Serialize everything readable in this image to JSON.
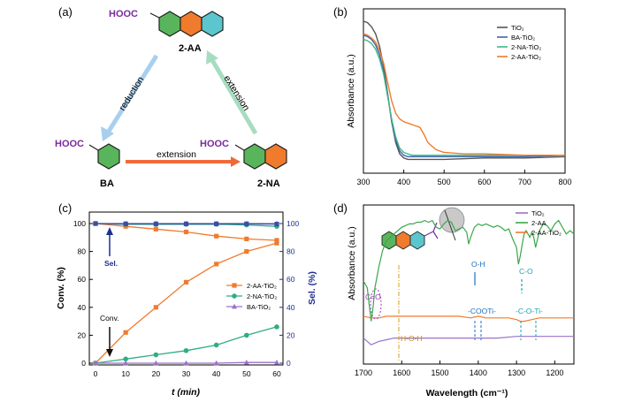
{
  "panel_a": {
    "label": "(a)",
    "cooh": "HOOC",
    "aa_name": "2-AA",
    "ba_name": "BA",
    "na_name": "2-NA",
    "arrow_reduction": "reduction",
    "arrow_extension_right": "extension",
    "arrow_extension_bottom": "extension",
    "colors": {
      "green": "#59b55c",
      "orange": "#f07b2c",
      "cyan": "#5cc6cf",
      "purple": "#7a2a9c",
      "blue_arrow": "#a9cfee",
      "green_arrow": "#a8dcc0",
      "orange_arrow": "#f06a38"
    }
  },
  "chart_data": [
    {
      "panel": "(b)",
      "type": "line",
      "xlabel": "Wavelength (nm)",
      "ylabel": "Absorbance (a.u.)",
      "xlim": [
        300,
        800
      ],
      "xticks": [
        "300",
        "400",
        "500",
        "600",
        "700",
        "800"
      ],
      "yticks_shown": false,
      "legend": [
        "TiO₂",
        "BA-TiO₂",
        "2-NA-TiO₂",
        "2-AA-TiO₂"
      ],
      "legend_position": "top-right",
      "series": [
        {
          "name": "TiO₂",
          "color": "#555555",
          "x": [
            300,
            310,
            320,
            330,
            340,
            350,
            360,
            370,
            380,
            390,
            400,
            410,
            420,
            440,
            460,
            500,
            600,
            700,
            800
          ],
          "y": [
            1.0,
            0.99,
            0.96,
            0.91,
            0.82,
            0.68,
            0.48,
            0.28,
            0.13,
            0.05,
            0.02,
            0.01,
            0.01,
            0.01,
            0.01,
            0.01,
            0.02,
            0.02,
            0.03
          ]
        },
        {
          "name": "BA-TiO₂",
          "color": "#3a64b0",
          "x": [
            300,
            310,
            320,
            330,
            340,
            350,
            360,
            370,
            380,
            390,
            400,
            410,
            420,
            440,
            460,
            500,
            600,
            700,
            800
          ],
          "y": [
            0.9,
            0.89,
            0.87,
            0.83,
            0.76,
            0.64,
            0.47,
            0.29,
            0.15,
            0.07,
            0.04,
            0.03,
            0.03,
            0.03,
            0.03,
            0.03,
            0.03,
            0.03,
            0.04
          ]
        },
        {
          "name": "2-NA-TiO₂",
          "color": "#3fb88a",
          "x": [
            300,
            310,
            320,
            330,
            340,
            350,
            360,
            370,
            380,
            390,
            400,
            410,
            420,
            440,
            460,
            500,
            600,
            700,
            800
          ],
          "y": [
            0.87,
            0.86,
            0.84,
            0.8,
            0.73,
            0.62,
            0.46,
            0.3,
            0.17,
            0.09,
            0.06,
            0.05,
            0.04,
            0.04,
            0.04,
            0.04,
            0.04,
            0.04,
            0.04
          ]
        },
        {
          "name": "2-AA-TiO₂",
          "color": "#f07b2c",
          "x": [
            300,
            310,
            320,
            330,
            340,
            350,
            360,
            370,
            380,
            390,
            400,
            410,
            420,
            430,
            440,
            450,
            460,
            480,
            500,
            550,
            600,
            700,
            800
          ],
          "y": [
            0.91,
            0.9,
            0.88,
            0.85,
            0.79,
            0.7,
            0.56,
            0.43,
            0.34,
            0.3,
            0.28,
            0.27,
            0.26,
            0.25,
            0.24,
            0.19,
            0.13,
            0.08,
            0.06,
            0.05,
            0.05,
            0.04,
            0.04
          ]
        }
      ]
    },
    {
      "panel": "(c)",
      "type": "line",
      "xlabel": "t (min)",
      "ylabel_left": "Conv. (%)",
      "ylabel_right": "Sel. (%)",
      "xlim": [
        0,
        60
      ],
      "ylim": [
        0,
        100
      ],
      "xticks": [
        "0",
        "10",
        "20",
        "30",
        "40",
        "50",
        "60"
      ],
      "yticks": [
        "0",
        "20",
        "40",
        "60",
        "80",
        "100"
      ],
      "annotation_sel": "Sel.",
      "annotation_conv": "Conv.",
      "legend": [
        "2-AA-TiO₂",
        "2-NA-TiO₂",
        "BA-TiO₂"
      ],
      "legend_position": "center-right",
      "conversion": [
        {
          "name": "2-AA-TiO₂",
          "color": "#f07b2c",
          "marker": "square",
          "x": [
            0,
            10,
            20,
            30,
            40,
            50,
            60
          ],
          "y": [
            0,
            22,
            40,
            58,
            71,
            80,
            86
          ]
        },
        {
          "name": "2-NA-TiO₂",
          "color": "#2fae7f",
          "marker": "circle",
          "x": [
            0,
            10,
            20,
            30,
            40,
            50,
            60
          ],
          "y": [
            0,
            3,
            6,
            9,
            13,
            20,
            26
          ]
        },
        {
          "name": "BA-TiO₂",
          "color": "#9a72c8",
          "marker": "triangle",
          "x": [
            0,
            10,
            20,
            30,
            40,
            50,
            60
          ],
          "y": [
            0,
            0,
            0,
            0,
            0,
            0.5,
            0.5
          ]
        }
      ],
      "selectivity": [
        {
          "name": "2-AA-TiO₂",
          "color": "#f07b2c",
          "marker": "square",
          "x": [
            0,
            10,
            20,
            30,
            40,
            50,
            60
          ],
          "y": [
            100,
            98,
            96,
            94,
            91,
            89,
            88
          ]
        },
        {
          "name": "2-NA-TiO₂",
          "color": "#2fae7f",
          "marker": "circle",
          "x": [
            0,
            10,
            20,
            30,
            40,
            50,
            60
          ],
          "y": [
            100,
            99.5,
            99.5,
            99.5,
            99.5,
            99,
            98
          ]
        },
        {
          "name": "BA-TiO₂",
          "color": "#9a72c8",
          "marker": "triangle",
          "x": [
            0,
            10,
            20,
            30,
            40,
            50,
            60
          ],
          "y": [
            100,
            100,
            100,
            100,
            100,
            100,
            100
          ]
        },
        {
          "name": "BA-TiO₂ (blue)",
          "color": "#3a4ea8",
          "marker": "square",
          "x": [
            0,
            10,
            20,
            30,
            40,
            50,
            60
          ],
          "y": [
            100,
            99.8,
            99.8,
            99.8,
            99.8,
            99.8,
            99.6
          ]
        }
      ]
    },
    {
      "panel": "(d)",
      "type": "line",
      "xlabel": "Wavelength (cm⁻¹)",
      "ylabel": "Absorbance (a.u.)",
      "xlim": [
        1700,
        1150
      ],
      "xticks": [
        "1700",
        "1600",
        "1500",
        "1400",
        "1300",
        "1200"
      ],
      "legend": [
        "TiO₂",
        "2-AA",
        "2-AA-TiO₂"
      ],
      "legend_position": "top-right",
      "annotations": [
        "C=O",
        "O-H",
        "C-O",
        "-COOTi-",
        "-C-O-Ti-",
        "H-O-H"
      ],
      "series": [
        {
          "name": "TiO₂",
          "color": "#9a72c8",
          "x": [
            1700,
            1680,
            1660,
            1640,
            1620,
            1600,
            1550,
            1500,
            1450,
            1400,
            1350,
            1300,
            1250,
            1200,
            1150
          ],
          "y": [
            0.06,
            0.02,
            0.04,
            0.05,
            0.06,
            0.06,
            0.06,
            0.06,
            0.06,
            0.06,
            0.06,
            0.07,
            0.07,
            0.07,
            0.07
          ]
        },
        {
          "name": "2-AA",
          "color": "#3aa84a",
          "x": [
            1700,
            1690,
            1685,
            1680,
            1675,
            1670,
            1660,
            1650,
            1640,
            1630,
            1620,
            1610,
            1600,
            1590,
            1580,
            1570,
            1560,
            1550,
            1540,
            1530,
            1520,
            1510,
            1500,
            1490,
            1480,
            1470,
            1460,
            1450,
            1440,
            1430,
            1425,
            1420,
            1415,
            1410,
            1400,
            1390,
            1380,
            1370,
            1360,
            1350,
            1340,
            1330,
            1320,
            1310,
            1300,
            1295,
            1290,
            1285,
            1280,
            1275,
            1270,
            1265,
            1260,
            1255,
            1250,
            1240,
            1230,
            1220,
            1210,
            1200,
            1190,
            1180,
            1170,
            1160,
            1150
          ],
          "y": [
            0.4,
            0.36,
            0.26,
            0.16,
            0.24,
            0.36,
            0.48,
            0.58,
            0.64,
            0.66,
            0.68,
            0.7,
            0.72,
            0.73,
            0.74,
            0.74,
            0.75,
            0.75,
            0.76,
            0.75,
            0.76,
            0.72,
            0.71,
            0.74,
            0.76,
            0.75,
            0.7,
            0.71,
            0.72,
            0.69,
            0.62,
            0.66,
            0.69,
            0.72,
            0.74,
            0.73,
            0.74,
            0.73,
            0.72,
            0.73,
            0.72,
            0.7,
            0.71,
            0.65,
            0.6,
            0.5,
            0.55,
            0.62,
            0.68,
            0.7,
            0.68,
            0.66,
            0.69,
            0.66,
            0.6,
            0.7,
            0.74,
            0.73,
            0.7,
            0.74,
            0.76,
            0.72,
            0.68,
            0.7,
            0.68
          ]
        },
        {
          "name": "2-AA-TiO₂",
          "color": "#f07b2c",
          "x": [
            1700,
            1680,
            1660,
            1640,
            1620,
            1600,
            1550,
            1500,
            1450,
            1420,
            1400,
            1380,
            1350,
            1320,
            1300,
            1290,
            1280,
            1260,
            1240,
            1200,
            1150
          ],
          "y": [
            0.19,
            0.18,
            0.18,
            0.19,
            0.19,
            0.19,
            0.19,
            0.19,
            0.19,
            0.18,
            0.19,
            0.18,
            0.18,
            0.18,
            0.17,
            0.16,
            0.16,
            0.17,
            0.18,
            0.18,
            0.18
          ]
        }
      ]
    }
  ]
}
